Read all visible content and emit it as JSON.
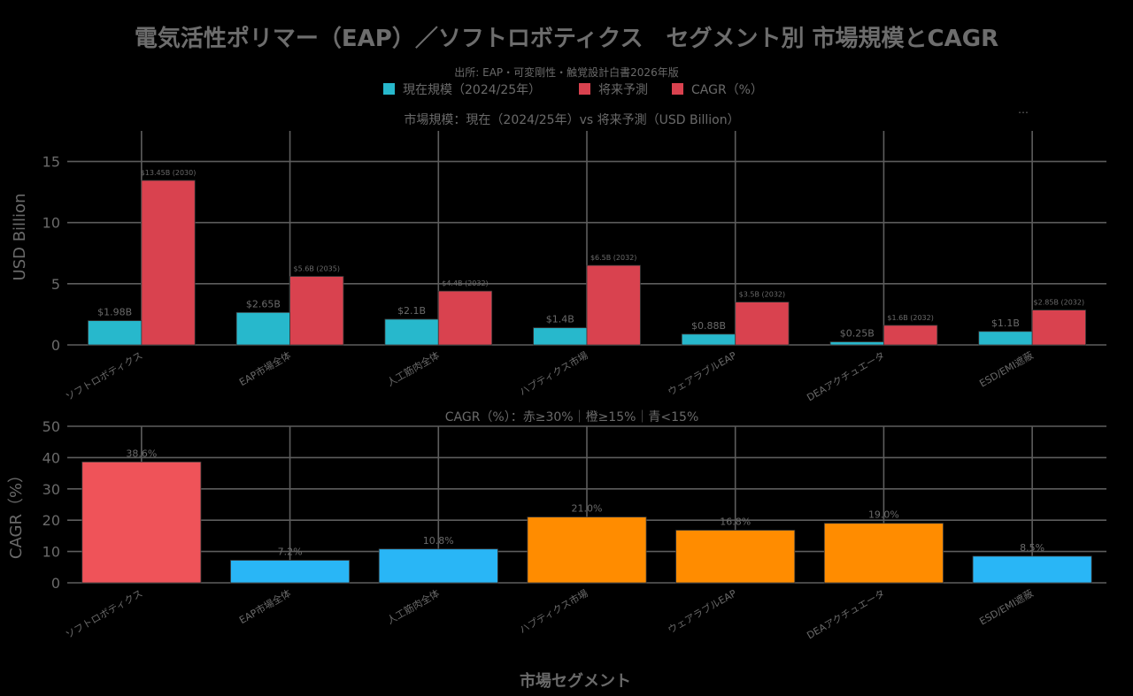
{
  "title": "電気活性ポリマー（EAP）／ソフトロボティクス　セグメント別 市場規模とCAGR",
  "source": "出所: EAP・可変剛性・触覚設計白書2026年版",
  "legend": [
    {
      "label": "現在規模（2024/25年）",
      "color": "#27b8cc"
    },
    {
      "label": "将来予測",
      "color": "#d9424f"
    },
    {
      "label": "CAGR（%）",
      "color": "#d9424f"
    }
  ],
  "menu_dots": "…",
  "x_axis_title": "市場セグメント",
  "chart_data": [
    {
      "type": "bar",
      "title": "市場規模：現在（2024/25年）vs 将来予測（USD Billion）",
      "ylabel": "USD Billion",
      "ylim": [
        0,
        17.5
      ],
      "yticks": [
        0,
        5,
        10,
        15
      ],
      "categories": [
        "ソフトロボティクス",
        "EAP市場全体",
        "人工筋肉全体",
        "ハプティクス市場",
        "ウェアラブルEAP",
        "DEAアクチュエータ",
        "ESD/EMI遮蔽"
      ],
      "series": [
        {
          "name": "現在規模（2024/25年）",
          "color": "#27b8cc",
          "values": [
            1.98,
            2.65,
            2.1,
            1.4,
            0.88,
            0.25,
            1.1
          ],
          "labels": [
            "$1.98B",
            "$2.65B",
            "$2.1B",
            "$1.4B",
            "$0.88B",
            "$0.25B",
            "$1.1B"
          ]
        },
        {
          "name": "将来予測",
          "color": "#d9424f",
          "values": [
            13.45,
            5.6,
            4.4,
            6.5,
            3.5,
            1.6,
            2.85
          ],
          "labels": [
            "$13.45B (2030)",
            "$5.6B (2035)",
            "$4.4B (2032)",
            "$6.5B (2032)",
            "$3.5B (2032)",
            "$1.6B (2032)",
            "$2.85B (2032)"
          ]
        }
      ]
    },
    {
      "type": "bar",
      "title": "CAGR（%）：赤≥30%｜橙≥15%｜青<15%",
      "ylabel": "CAGR（%）",
      "ylim": [
        0,
        50
      ],
      "yticks": [
        0,
        10,
        20,
        30,
        40,
        50
      ],
      "categories": [
        "ソフトロボティクス",
        "EAP市場全体",
        "人工筋肉全体",
        "ハプティクス市場",
        "ウェアラブルEAP",
        "DEAアクチュエータ",
        "ESD/EMI遮蔽"
      ],
      "values": [
        38.6,
        7.2,
        10.8,
        21.0,
        16.8,
        19.0,
        8.5
      ],
      "labels": [
        "38.6%",
        "7.2%",
        "10.8%",
        "21.0%",
        "16.8%",
        "19.0%",
        "8.5%"
      ],
      "colors": [
        "#ef5359",
        "#29b6f6",
        "#29b6f6",
        "#ff8c00",
        "#ff8c00",
        "#ff8c00",
        "#29b6f6"
      ]
    }
  ]
}
